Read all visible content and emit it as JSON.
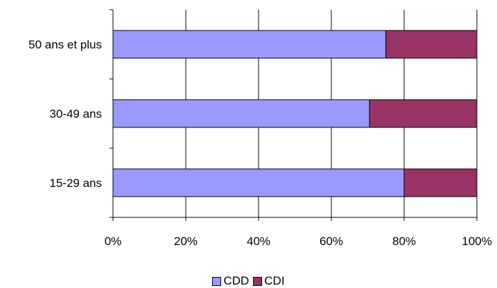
{
  "chart_data": {
    "type": "bar",
    "orientation": "horizontal",
    "stacked": "percent",
    "categories": [
      "50 ans et plus",
      "30-49 ans",
      "15-29 ans"
    ],
    "series": [
      {
        "name": "CDD",
        "values": [
          75,
          70.5,
          80
        ],
        "color": "#9999ff"
      },
      {
        "name": "CDI",
        "values": [
          25,
          29.5,
          20
        ],
        "color": "#993366"
      }
    ],
    "x_ticks": [
      "0%",
      "20%",
      "40%",
      "60%",
      "80%",
      "100%"
    ],
    "xlim": [
      0,
      100
    ],
    "grid": "vertical",
    "legend": "bottom-center"
  }
}
